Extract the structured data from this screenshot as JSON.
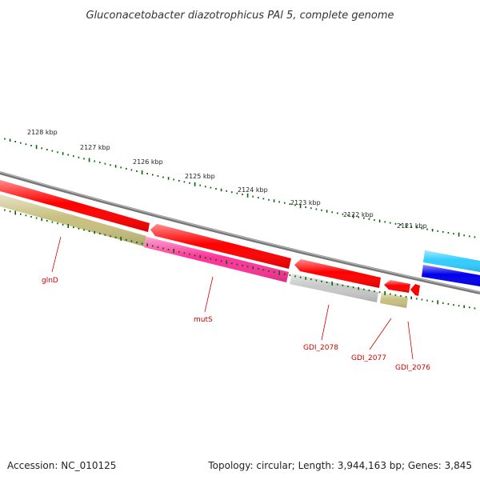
{
  "title": "Gluconacetobacter diazotrophicus PAl 5, complete genome",
  "ticks": [
    "2128 kbp",
    "2127 kbp",
    "2126 kbp",
    "2125 kbp",
    "2124 kbp",
    "2123 kbp",
    "2122 kbp",
    "2121 kbp"
  ],
  "genes": [
    {
      "name": "glnD",
      "color": "#c8c080"
    },
    {
      "name": "mutS",
      "color": "#ff3399"
    },
    {
      "name": "GDI_2078",
      "color": "#c8c8c8"
    },
    {
      "name": "GDI_2077",
      "color": "#c8c080"
    },
    {
      "name": "GDI_2076",
      "color": "#ff0000"
    }
  ],
  "colors": {
    "forward_red": "#ff0000",
    "backbone": "#888888",
    "tick_green": "#006600",
    "cyan": "#33ccff",
    "blue": "#0000ee"
  },
  "footer": {
    "accession": "Accession: NC_010125",
    "stats": "Topology: circular; Length: 3,944,163 bp; Genes: 3,845"
  }
}
